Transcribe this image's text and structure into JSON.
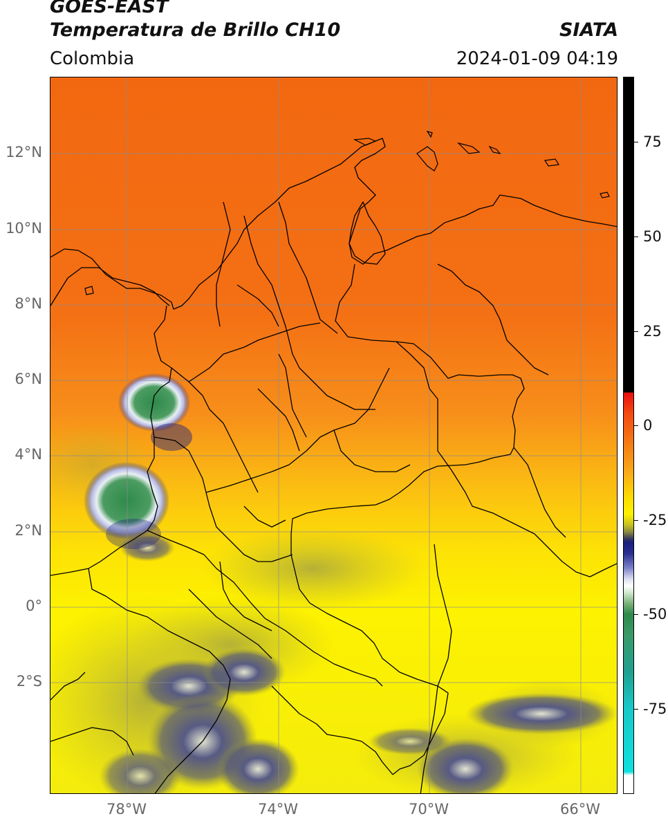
{
  "header": {
    "satellite": "GOES-EAST",
    "product": "Temperatura de Brillo CH10",
    "region": "Colombia",
    "brand": "SIATA",
    "timestamp": "2024-01-09 04:19"
  },
  "map": {
    "lat_labels": [
      "12°N",
      "10°N",
      "8°N",
      "6°N",
      "4°N",
      "2°N",
      "0°",
      "2°S"
    ],
    "lon_labels": [
      "78°W",
      "74°W",
      "70°W",
      "66°W"
    ],
    "colors": {
      "warm_orange": "#f26a10",
      "orange": "#f7951a",
      "yellow": "#fdf200",
      "olive": "#b8b22a",
      "navy": "#1a1f80",
      "white": "#f4f4ff",
      "green": "#2e8a4a",
      "border": "#000000",
      "grid": "#8c8c8c"
    }
  },
  "colorbar": {
    "labels": [
      "75",
      "50",
      "25",
      "0",
      "-25",
      "-50",
      "-75"
    ],
    "range": [
      -100,
      90
    ]
  }
}
